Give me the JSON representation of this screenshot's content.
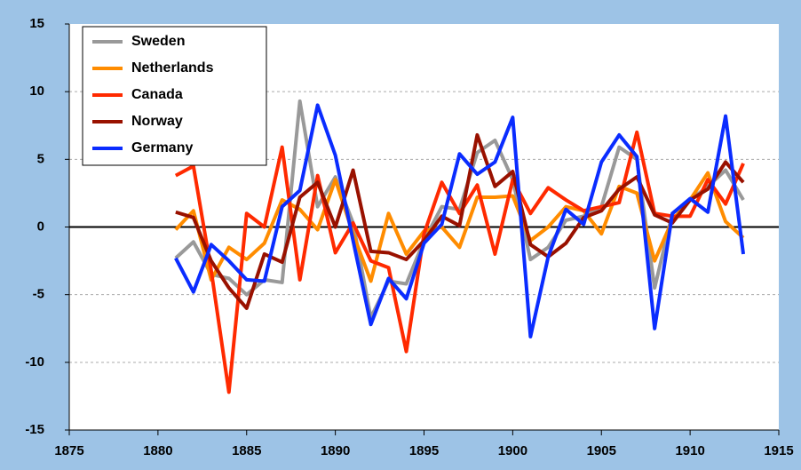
{
  "chart_data": {
    "type": "line",
    "x": [
      1881,
      1882,
      1883,
      1884,
      1885,
      1886,
      1887,
      1888,
      1889,
      1890,
      1891,
      1892,
      1893,
      1894,
      1895,
      1896,
      1897,
      1898,
      1899,
      1900,
      1901,
      1902,
      1903,
      1904,
      1905,
      1906,
      1907,
      1908,
      1909,
      1910,
      1911,
      1912,
      1913
    ],
    "series": [
      {
        "name": "Sweden",
        "color": "#999999",
        "values": [
          -2.3,
          -1.1,
          -3.5,
          -3.8,
          -5,
          -3.9,
          -4.1,
          9.3,
          1.5,
          3.7,
          0.3,
          -6.7,
          -4,
          -4.2,
          -1,
          1.5,
          1.3,
          5.5,
          6.4,
          3.5,
          -2.4,
          -1.5,
          0.5,
          0.8,
          1.5,
          5.9,
          5,
          -4.5,
          1,
          2,
          3,
          4.2,
          2
        ]
      },
      {
        "name": "Netherlands",
        "color": "#ff8c00",
        "values": [
          -0.2,
          1.2,
          -3.9,
          -1.5,
          -2.4,
          -1.2,
          2,
          1.3,
          -0.2,
          3.5,
          -0.5,
          -4,
          1,
          -2,
          -0.3,
          0,
          -1.5,
          2.2,
          2.2,
          2.3,
          -1,
          0,
          1.5,
          1.2,
          -0.5,
          3,
          2.5,
          -2.5,
          0.5,
          2,
          4,
          0.4,
          -0.8
        ]
      },
      {
        "name": "Canada",
        "color": "#ff2a00",
        "values": [
          3.8,
          4.5,
          -3.2,
          -12.2,
          1,
          0,
          5.9,
          -3.9,
          3.8,
          -1.9,
          0.3,
          -2.5,
          -3,
          -9.2,
          -0.5,
          3.3,
          1,
          3.1,
          -2,
          3.5,
          1,
          2.9,
          2,
          1.2,
          1.5,
          1.8,
          7,
          1,
          0.8,
          0.8,
          3.5,
          1.7,
          4.7
        ]
      },
      {
        "name": "Norway",
        "color": "#991100",
        "values": [
          1.1,
          0.7,
          -2.5,
          -4.5,
          -6,
          -2,
          -2.6,
          2.2,
          3.3,
          0,
          4.2,
          -1.8,
          -1.9,
          -2.4,
          -1,
          0.8,
          0.1,
          6.8,
          3,
          4.1,
          -1.3,
          -2.2,
          -1.2,
          0.7,
          1.2,
          2.8,
          3.7,
          0.9,
          0.3,
          2,
          2.8,
          4.8,
          3.3
        ]
      },
      {
        "name": "Germany",
        "color": "#0a2cff",
        "values": [
          -2.3,
          -4.8,
          -1.3,
          -2.5,
          -3.9,
          -4,
          1.5,
          2.7,
          9,
          5.3,
          -1,
          -7.2,
          -3.8,
          -5.3,
          -1.2,
          0.2,
          5.4,
          3.9,
          4.8,
          8.1,
          -8.1,
          -2.2,
          1.3,
          0.2,
          4.8,
          6.8,
          5.2,
          -7.5,
          1,
          2.1,
          1.1,
          8.2,
          -2
        ]
      }
    ],
    "xlim": [
      1875,
      1915
    ],
    "xticks": [
      1875,
      1880,
      1885,
      1890,
      1895,
      1900,
      1905,
      1910,
      1915
    ],
    "ylim": [
      -15,
      15
    ],
    "yticks": [
      -15,
      -10,
      -5,
      0,
      5,
      10,
      15
    ],
    "grid": true,
    "legend": "top-left"
  }
}
